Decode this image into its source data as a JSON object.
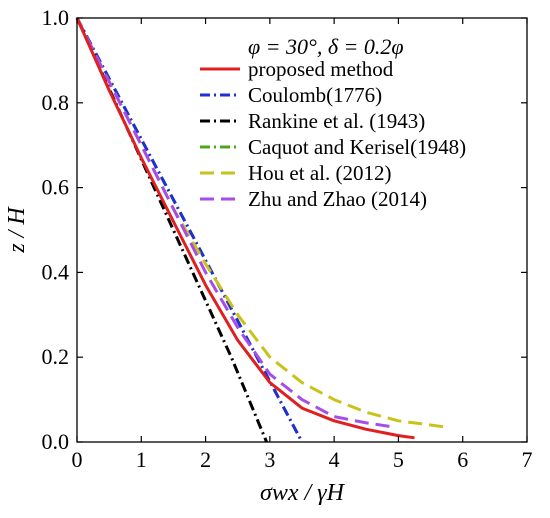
{
  "chart_data": {
    "type": "line",
    "title": "",
    "legend_title": "φ = 30°, δ = 0.2φ",
    "xlabel": "σwx / γH",
    "ylabel": "z / H",
    "xlim": [
      0,
      7
    ],
    "ylim": [
      0,
      1
    ],
    "x_ticks": [
      "0",
      "1",
      "2",
      "3",
      "4",
      "5",
      "6",
      "7"
    ],
    "y_ticks": [
      "0.0",
      "0.2",
      "0.4",
      "0.6",
      "0.8",
      "1.0"
    ],
    "grid": false,
    "legend_position": "top-right",
    "series": [
      {
        "name": "Caquot and Kerisel(1948)",
        "color": "#4aa81f",
        "dash": "10,4,2,4",
        "points": [
          [
            0,
            1.0
          ],
          [
            0.7,
            0.8
          ],
          [
            1.4,
            0.6
          ],
          [
            2.1,
            0.4
          ],
          [
            2.8,
            0.2
          ],
          [
            3.5,
            0.0
          ]
        ]
      },
      {
        "name": "Coulomb(1776)",
        "color": "#1f2fd6",
        "dash": "10,4,2,4",
        "points": [
          [
            0,
            1.0
          ],
          [
            0.7,
            0.8
          ],
          [
            1.4,
            0.6
          ],
          [
            2.1,
            0.4
          ],
          [
            2.8,
            0.2
          ],
          [
            3.5,
            0.0
          ]
        ]
      },
      {
        "name": "Rankine et al. (1943)",
        "color": "#000000",
        "dash": "10,4,2,4",
        "points": [
          [
            0,
            1.0
          ],
          [
            0.6,
            0.8
          ],
          [
            1.2,
            0.6
          ],
          [
            1.8,
            0.4
          ],
          [
            2.4,
            0.2
          ],
          [
            2.95,
            0.0
          ]
        ]
      },
      {
        "name": "Hou et al. (2012)",
        "color": "#c9c21a",
        "dash": "14,7",
        "points": [
          [
            0,
            1.0
          ],
          [
            0.5,
            0.85
          ],
          [
            1.0,
            0.7
          ],
          [
            1.5,
            0.55
          ],
          [
            2.0,
            0.42
          ],
          [
            2.5,
            0.3
          ],
          [
            3.0,
            0.2
          ],
          [
            3.5,
            0.14
          ],
          [
            4.0,
            0.1
          ],
          [
            4.5,
            0.07
          ],
          [
            5.0,
            0.05
          ],
          [
            5.5,
            0.04
          ],
          [
            5.75,
            0.035
          ]
        ]
      },
      {
        "name": "Zhu and Zhao (2014)",
        "color": "#a64de8",
        "dash": "14,7",
        "points": [
          [
            0,
            1.0
          ],
          [
            0.5,
            0.85
          ],
          [
            1.0,
            0.7
          ],
          [
            1.5,
            0.55
          ],
          [
            2.0,
            0.4
          ],
          [
            2.5,
            0.27
          ],
          [
            3.0,
            0.16
          ],
          [
            3.5,
            0.1
          ],
          [
            4.0,
            0.06
          ],
          [
            4.5,
            0.045
          ],
          [
            4.95,
            0.035
          ]
        ]
      },
      {
        "name": "proposed method",
        "color": "#e02020",
        "dash": "",
        "points": [
          [
            0,
            1.0
          ],
          [
            0.5,
            0.83
          ],
          [
            1.0,
            0.67
          ],
          [
            1.5,
            0.52
          ],
          [
            2.0,
            0.37
          ],
          [
            2.5,
            0.24
          ],
          [
            3.0,
            0.14
          ],
          [
            3.5,
            0.08
          ],
          [
            4.0,
            0.05
          ],
          [
            4.5,
            0.03
          ],
          [
            5.0,
            0.015
          ],
          [
            5.25,
            0.01
          ]
        ]
      }
    ],
    "legend_order": [
      5,
      1,
      2,
      0,
      3,
      4
    ]
  }
}
